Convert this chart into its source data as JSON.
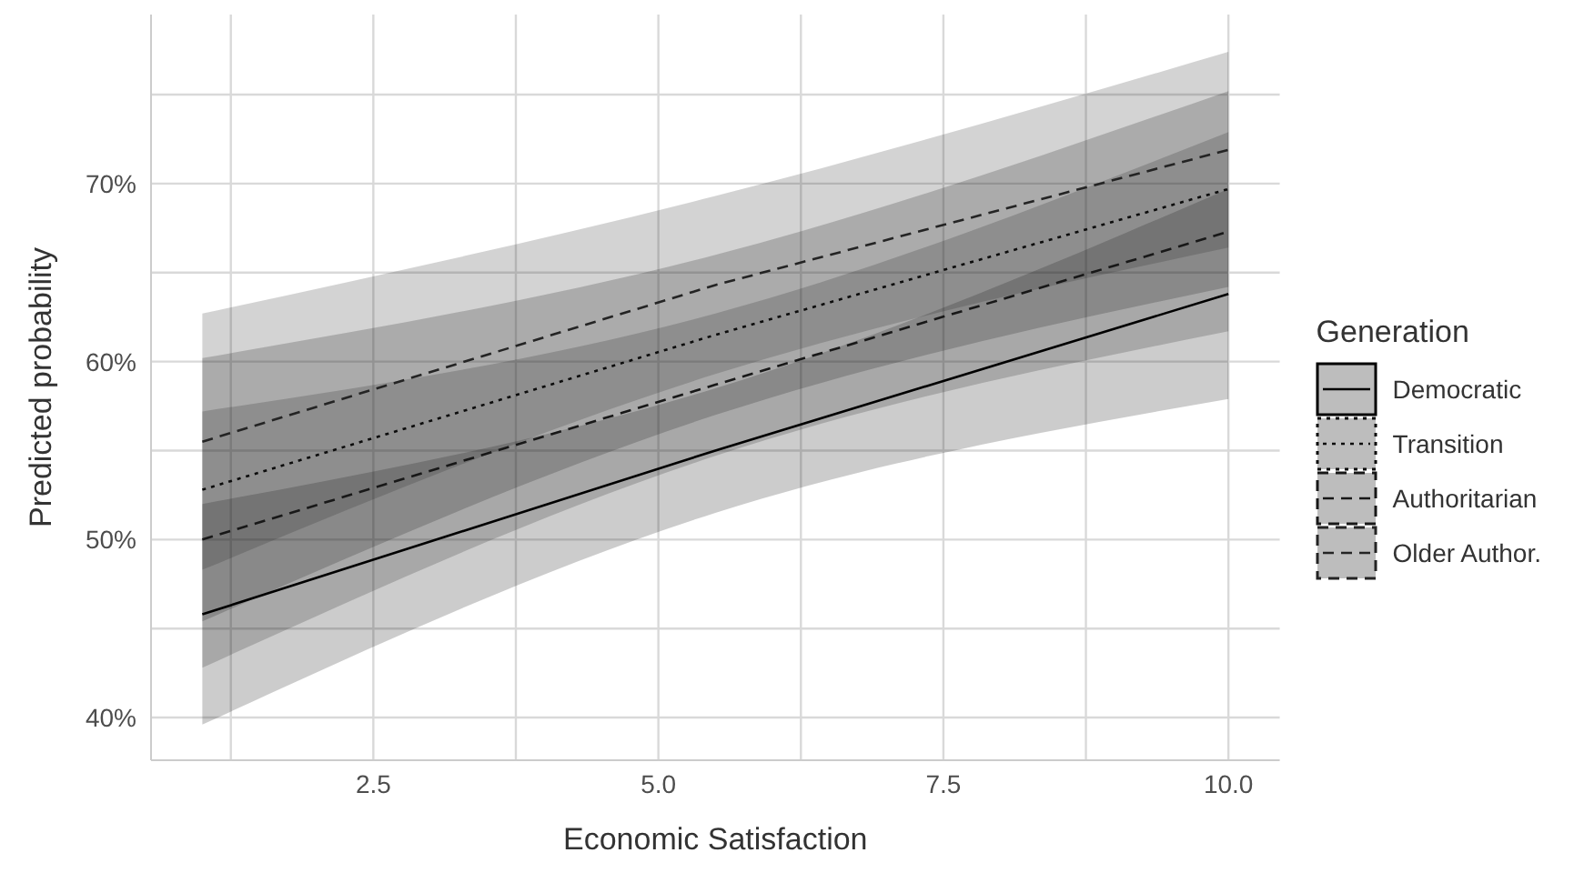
{
  "chart_data": {
    "type": "line",
    "xlabel": "Economic Satisfaction",
    "ylabel": "Predicted probability",
    "legend_title": "Generation",
    "x": [
      1,
      5.5,
      10
    ],
    "series": [
      {
        "name": "Democratic",
        "color": "#000000",
        "line_style": "solid",
        "values": [
          45.8,
          55.0,
          63.8
        ],
        "lower": [
          39.6,
          51.5,
          57.9
        ],
        "upper": [
          52.0,
          58.5,
          69.7
        ]
      },
      {
        "name": "Transition",
        "color": "#0c0c0c",
        "line_style": "dotted",
        "values": [
          52.8,
          61.5,
          69.7
        ],
        "lower": [
          45.4,
          57.0,
          64.2
        ],
        "upper": [
          60.2,
          66.0,
          75.2
        ]
      },
      {
        "name": "Authoritarian",
        "color": "#181818",
        "line_style": "dashed",
        "values": [
          50.0,
          58.7,
          67.3
        ],
        "lower": [
          42.8,
          54.7,
          61.7
        ],
        "upper": [
          57.2,
          62.7,
          72.9
        ]
      },
      {
        "name": "Older Author.",
        "color": "#242424",
        "line_style": "dashed",
        "values": [
          55.5,
          64.3,
          71.9
        ],
        "lower": [
          48.3,
          59.3,
          66.4
        ],
        "upper": [
          62.7,
          69.3,
          77.4
        ]
      }
    ],
    "xlim": [
      0.55,
      10.45
    ],
    "xticks": [
      {
        "value": 1.25,
        "label": null
      },
      2.5,
      {
        "value": 3.75,
        "label": null
      },
      {
        "value": 5,
        "label": "5.0"
      },
      {
        "value": 6.25,
        "label": null
      },
      7.5,
      {
        "value": 8.75,
        "label": null
      },
      {
        "value": 10,
        "label": "10.0"
      }
    ],
    "ylim": [
      37.6,
      79.5
    ],
    "yticks": [
      {
        "value": 40,
        "label": "40%"
      },
      {
        "value": 45,
        "label": null
      },
      {
        "value": 50,
        "label": "50%"
      },
      {
        "value": 55,
        "label": null
      },
      {
        "value": 60,
        "label": "60%"
      },
      {
        "value": 65,
        "label": null
      },
      {
        "value": 70,
        "label": "70%"
      },
      {
        "value": 75,
        "label": null
      }
    ],
    "grid": true,
    "legend": "right",
    "marker": "none"
  }
}
